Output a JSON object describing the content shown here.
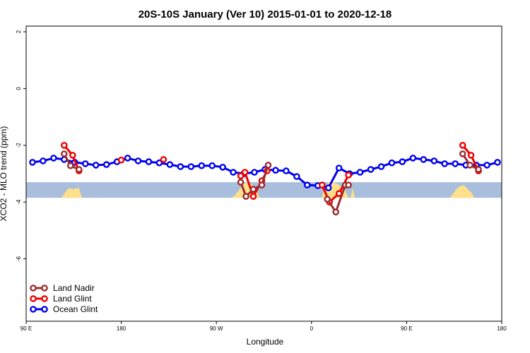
{
  "chart_data": {
    "type": "line",
    "title": "20S-10S January (Ver 10)   2015-01-01 to 2020-12-18",
    "xlabel": "Longitude",
    "ylabel": "XCO2 - MLO trend (ppm)",
    "xlim": [
      90,
      540
    ],
    "ylim": [
      -8.2,
      2.2
    ],
    "x_ticks": [
      {
        "value": 90,
        "label": "90 E"
      },
      {
        "value": 180,
        "label": "180"
      },
      {
        "value": 270,
        "label": "90 W"
      },
      {
        "value": 360,
        "label": "0"
      },
      {
        "value": 450,
        "label": "90 E"
      },
      {
        "value": 540,
        "label": "180"
      }
    ],
    "y_ticks": [
      {
        "value": 2,
        "label": "2"
      },
      {
        "value": 0,
        "label": "0"
      },
      {
        "value": -2,
        "label": "-2"
      },
      {
        "value": -4,
        "label": "-4"
      },
      {
        "value": -6,
        "label": "-6"
      }
    ],
    "grid": false,
    "legend_position": "bottom-left",
    "band": {
      "ymin": -3.85,
      "ymax": -3.3,
      "ocean_color": "#A8BEDC",
      "land_color": "#FFE08A"
    },
    "land_masses": [
      {
        "x": [
          123,
          126,
          128,
          131,
          134,
          137,
          140,
          141,
          143
        ],
        "ymin": [
          -3.85,
          -3.72,
          -3.6,
          -3.5,
          -3.55,
          -3.52,
          -3.5,
          -3.65,
          -3.85
        ]
      },
      {
        "x": [
          284,
          288,
          292,
          296,
          300,
          304,
          308,
          311
        ],
        "ymin": [
          -3.85,
          -3.75,
          -3.55,
          -3.35,
          -3.3,
          -3.4,
          -3.6,
          -3.85
        ]
      },
      {
        "x": [
          370,
          372,
          376,
          380,
          384,
          388,
          392,
          395
        ],
        "ymin": [
          -3.85,
          -3.5,
          -3.3,
          -3.3,
          -3.35,
          -3.45,
          -3.6,
          -3.85
        ]
      },
      {
        "x": [
          397,
          399,
          401
        ],
        "ymin": [
          -3.85,
          -3.5,
          -3.85
        ]
      },
      {
        "x": [
          491,
          494,
          497,
          500,
          504,
          508,
          512,
          514
        ],
        "ymin": [
          -3.85,
          -3.7,
          -3.55,
          -3.45,
          -3.4,
          -3.55,
          -3.7,
          -3.85
        ]
      }
    ],
    "series": [
      {
        "name": "Ocean Glint",
        "color": "#0000EE",
        "x": [
          96,
          106,
          116,
          126,
          136,
          146,
          156,
          166,
          176,
          186,
          196,
          206,
          216,
          226,
          236,
          246,
          256,
          266,
          276,
          286,
          296,
          306,
          316,
          326,
          336,
          346,
          356,
          366,
          376,
          386,
          396,
          406,
          416,
          426,
          436,
          446,
          456,
          466,
          476,
          486,
          496,
          506,
          516,
          526,
          536
        ],
        "y": [
          -2.6,
          -2.55,
          -2.45,
          -2.5,
          -2.6,
          -2.65,
          -2.7,
          -2.68,
          -2.58,
          -2.45,
          -2.55,
          -2.58,
          -2.62,
          -2.68,
          -2.75,
          -2.75,
          -2.72,
          -2.72,
          -2.77,
          -2.95,
          -3.0,
          -2.95,
          -2.85,
          -2.88,
          -2.9,
          -3.1,
          -3.4,
          -3.42,
          -3.5,
          -2.8,
          -3.0,
          -2.95,
          -2.85,
          -2.75,
          -2.62,
          -2.58,
          -2.45,
          -2.5,
          -2.55,
          -2.65,
          -2.65,
          -2.7,
          -2.7,
          -2.7,
          -2.6
        ]
      },
      {
        "name": "Land Glint",
        "color": "#EE0000",
        "segments": [
          {
            "x": [
              126,
              134,
              140
            ],
            "y": [
              -2.0,
              -2.35,
              -2.9
            ]
          },
          {
            "x": [
              180
            ],
            "y": [
              -2.52
            ]
          },
          {
            "x": [
              220
            ],
            "y": [
              -2.5
            ]
          },
          {
            "x": [
              293,
              297,
              305,
              313,
              318
            ],
            "y": [
              -3.08,
              -2.95,
              -3.8,
              -3.25,
              -2.9
            ]
          },
          {
            "x": [
              370,
              377,
              386,
              395
            ],
            "y": [
              -3.4,
              -4.0,
              -3.7,
              -3.05
            ]
          },
          {
            "x": [
              503,
              511,
              518
            ],
            "y": [
              -2.0,
              -2.35,
              -2.9
            ]
          }
        ]
      },
      {
        "name": "Land Nadir",
        "color": "#9B2D30",
        "segments": [
          {
            "x": [
              126,
              132,
              140
            ],
            "y": [
              -2.3,
              -2.72,
              -2.85
            ]
          },
          {
            "x": [
              293,
              298,
              305,
              313,
              319
            ],
            "y": [
              -3.3,
              -3.8,
              -3.55,
              -3.4,
              -2.7
            ]
          },
          {
            "x": [
              375,
              383,
              392,
              395
            ],
            "y": [
              -3.9,
              -4.35,
              -3.4,
              -3.4
            ]
          },
          {
            "x": [
              503,
              510,
              518
            ],
            "y": [
              -2.3,
              -2.7,
              -2.85
            ]
          }
        ]
      }
    ]
  }
}
